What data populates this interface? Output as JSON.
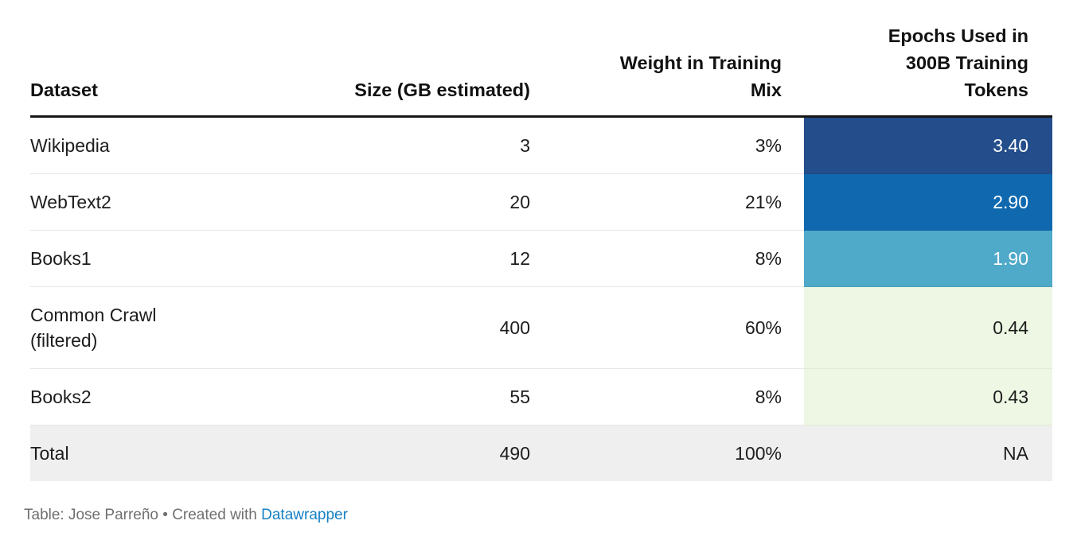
{
  "chart_data": {
    "type": "table",
    "columns": [
      "Dataset",
      "Size (GB estimated)",
      "Weight in Training Mix",
      "Epochs Used in 300B Training Tokens"
    ],
    "rows": [
      [
        "Wikipedia",
        3,
        "3%",
        3.4
      ],
      [
        "WebText2",
        20,
        "21%",
        2.9
      ],
      [
        "Books1",
        12,
        "8%",
        1.9
      ],
      [
        "Common Crawl (filtered)",
        400,
        "60%",
        0.44
      ],
      [
        "Books2",
        55,
        "8%",
        0.43
      ],
      [
        "Total",
        490,
        "100%",
        "NA"
      ]
    ],
    "heatmap_column": "Epochs Used in 300B Training Tokens",
    "heatmap_cell_colors": [
      "#234d8b",
      "#1069af",
      "#4fa9c9",
      "#edf7e3",
      "#edf7e3",
      "#efefef"
    ],
    "legend_position": "none",
    "grid": "horizontal-row-dividers"
  },
  "table": {
    "headers": {
      "dataset": "Dataset",
      "size": "Size (GB estimated)",
      "weight": "Weight in Training\nMix",
      "epochs": "Epochs Used in\n300B Training\nTokens"
    },
    "rows": [
      {
        "dataset": "Wikipedia",
        "size": "3",
        "weight": "3%",
        "epochs": "3.40",
        "epochs_bg": "#234d8b",
        "epochs_fg": "#ffffff"
      },
      {
        "dataset": "WebText2",
        "size": "20",
        "weight": "21%",
        "epochs": "2.90",
        "epochs_bg": "#1069af",
        "epochs_fg": "#ffffff"
      },
      {
        "dataset": "Books1",
        "size": "12",
        "weight": "8%",
        "epochs": "1.90",
        "epochs_bg": "#4fa9c9",
        "epochs_fg": "#ffffff"
      },
      {
        "dataset": "Common Crawl\n(filtered)",
        "size": "400",
        "weight": "60%",
        "epochs": "0.44",
        "epochs_bg": "#edf7e3",
        "epochs_fg": "#1d1d1d"
      },
      {
        "dataset": "Books2",
        "size": "55",
        "weight": "8%",
        "epochs": "0.43",
        "epochs_bg": "#edf7e3",
        "epochs_fg": "#1d1d1d"
      }
    ],
    "total_row": {
      "dataset": "Total",
      "size": "490",
      "weight": "100%",
      "epochs": "NA"
    }
  },
  "footer": {
    "credit_prefix": "Table: Jose Parreño • Created with ",
    "link_label": "Datawrapper",
    "link_color": "#1680c4"
  },
  "colors": {
    "header_rule": "#171717",
    "row_divider": "#e6e6e6",
    "total_row_bg": "#efefef",
    "text": "#1d1d1d",
    "footer_text": "#6f6f6f"
  }
}
